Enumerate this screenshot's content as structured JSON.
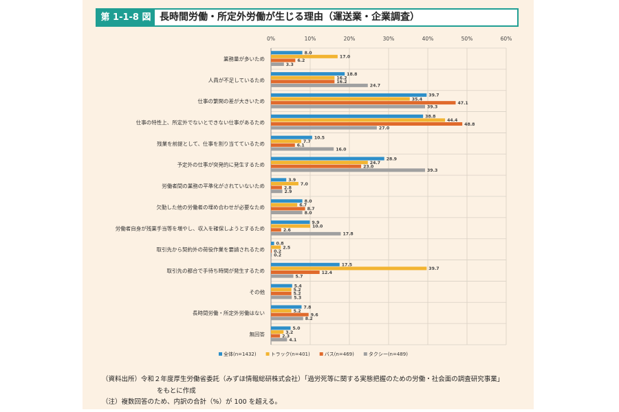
{
  "header": {
    "figure_number": "第 1-1-8 図",
    "title": "長時間労働・所定外労働が生じる理由（運送業・企業調査）"
  },
  "notes": {
    "source_line1": "（資料出所）令和２年度厚生労働省委託（みずほ情報総研株式会社）「過労死等に関する実態把握のための労働・社会面の調査研究事業」",
    "source_line2": "をもとに作成",
    "note": "（注）複数回答のため、内訳の合計（%）が 100 を超える。"
  },
  "chart_data": {
    "type": "bar",
    "orientation": "horizontal",
    "x_axis": {
      "ticks": [
        "0%",
        "10%",
        "20%",
        "30%",
        "40%",
        "50%",
        "60%"
      ],
      "range": [
        0,
        60
      ],
      "unit": "%"
    },
    "categories": [
      "業務量が多いため",
      "人員が不足しているため",
      "仕事の繁閑の差が大きいため",
      "仕事の特性上、所定外でないとできない仕事があるため",
      "残業を前提として、仕事を割り当てているため",
      "予定外の仕事が突発的に発生するため",
      "労働者間の業務の平準化がされていないため",
      "欠勤した他の労働者の埋め合わせが必要なため",
      "労働者自身が残業手当等を増やし、収入を確保しようとするため",
      "取引先から契約外の荷役作業を要請されるため",
      "取引先の都合で手待ち時間が発生するため",
      "その他",
      "長時間労働・所定外労働はない",
      "無回答"
    ],
    "series": [
      {
        "name": "全体(n=1432)",
        "color": "#2e8fc9",
        "values": [
          8.0,
          18.8,
          39.7,
          38.8,
          10.5,
          28.9,
          3.9,
          8.0,
          9.9,
          0.8,
          17.5,
          5.4,
          7.8,
          5.0
        ],
        "labels": [
          "8.0",
          "18.8",
          "39.7",
          "38.8",
          "10.5",
          "28.9",
          "3.9",
          "8.0",
          "9.9",
          "0.8",
          "17.5",
          "5.4",
          "7.8",
          "5.0"
        ]
      },
      {
        "name": "トラック(n=401)",
        "color": "#f2b432",
        "values": [
          17.0,
          16.2,
          35.4,
          44.4,
          7.7,
          24.7,
          7.0,
          6.7,
          10.0,
          2.5,
          39.7,
          5.2,
          5.2,
          3.2
        ],
        "labels": [
          "17.0",
          "16.2",
          "35.4",
          "44.4",
          "7.7",
          "24.7",
          "7.0",
          "6.7",
          "10.0",
          "2.5",
          "39.7",
          "5.2",
          "5.2",
          "3.2"
        ]
      },
      {
        "name": "バス(n=469)",
        "color": "#e06a2c",
        "values": [
          6.2,
          16.2,
          47.1,
          48.8,
          6.1,
          23.0,
          2.8,
          8.7,
          2.6,
          0.2,
          12.4,
          5.2,
          9.6,
          2.3
        ],
        "labels": [
          "6.2",
          "16.2",
          "47.1",
          "48.8",
          "6.1",
          "23.0",
          "2.8",
          "8.7",
          "2.6",
          "0.2",
          "12.4",
          "5.2",
          "9.6",
          "2.3"
        ]
      },
      {
        "name": "タクシー(n=489)",
        "color": "#a0a0a0",
        "values": [
          3.3,
          24.7,
          39.3,
          27.0,
          16.0,
          39.3,
          2.9,
          8.0,
          17.8,
          0.2,
          5.7,
          5.3,
          8.2,
          4.1
        ],
        "labels": [
          "3.3",
          "24.7",
          "39.3",
          "27.0",
          "16.0",
          "39.3",
          "2.9",
          "8.0",
          "17.8",
          "0.2",
          "5.7",
          "5.3",
          "8.2",
          "4.1"
        ]
      }
    ],
    "legend_position": "bottom-left",
    "grid": true
  }
}
